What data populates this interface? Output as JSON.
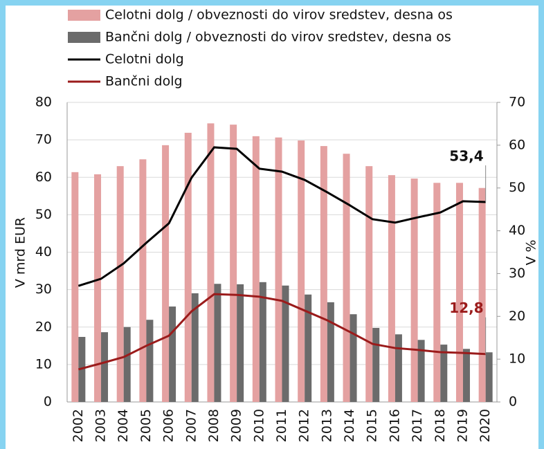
{
  "chart_data": {
    "type": "bar_line",
    "categories": [
      "2002",
      "2003",
      "2004",
      "2005",
      "2006",
      "2007",
      "2008",
      "2009",
      "2010",
      "2011",
      "2012",
      "2013",
      "2014",
      "2015",
      "2016",
      "2017",
      "2018",
      "2019",
      "2020"
    ],
    "series": [
      {
        "name": "Celotni dolg / obveznosti do virov sredstev, desna os",
        "type": "bar",
        "axis": "y2",
        "color": "#e4a1a1",
        "values": [
          53.7,
          53.2,
          55.1,
          56.7,
          60.0,
          62.9,
          65.1,
          64.8,
          62.1,
          61.8,
          61.1,
          59.8,
          58.0,
          55.1,
          53.0,
          52.2,
          51.2,
          51.2,
          50.0
        ]
      },
      {
        "name": "Bančni dolg / obveznosti do virov sredstev, desna os",
        "type": "bar",
        "axis": "y2",
        "color": "#6b6b6b",
        "values": [
          15.2,
          16.3,
          17.5,
          19.2,
          22.3,
          25.4,
          27.6,
          27.5,
          28.0,
          27.2,
          25.1,
          23.3,
          20.5,
          17.3,
          15.8,
          14.5,
          13.4,
          12.4,
          11.6
        ]
      },
      {
        "name": "Celotni dolg",
        "type": "line",
        "color": "#000000",
        "values": [
          31.0,
          32.9,
          37.0,
          42.5,
          47.7,
          59.9,
          68.0,
          67.6,
          62.3,
          61.5,
          59.3,
          56.0,
          52.5,
          48.8,
          47.9,
          49.3,
          50.6,
          53.6,
          53.4
        ],
        "value_labels": [
          null,
          null,
          null,
          null,
          null,
          null,
          null,
          null,
          null,
          null,
          null,
          null,
          null,
          null,
          null,
          null,
          null,
          null,
          "53,4"
        ]
      },
      {
        "name": "Bančni dolg",
        "type": "line",
        "color": "#9b1b1b",
        "values": [
          8.7,
          10.3,
          12.0,
          15.0,
          17.7,
          24.2,
          28.8,
          28.6,
          28.1,
          27.0,
          24.4,
          21.8,
          18.7,
          15.5,
          14.4,
          13.9,
          13.3,
          13.1,
          12.8
        ],
        "value_labels": [
          null,
          null,
          null,
          null,
          null,
          null,
          null,
          null,
          null,
          null,
          null,
          null,
          null,
          null,
          null,
          null,
          null,
          null,
          "12,8"
        ]
      }
    ],
    "ylabel": "V mrd EUR",
    "y2label": "V %",
    "ylim": [
      0,
      80
    ],
    "yticks": [
      0,
      10,
      20,
      30,
      40,
      50,
      60,
      70,
      80
    ],
    "y2lim": [
      0,
      70
    ],
    "y2ticks": [
      0,
      10,
      20,
      30,
      40,
      50,
      60,
      70
    ],
    "grid": true
  }
}
